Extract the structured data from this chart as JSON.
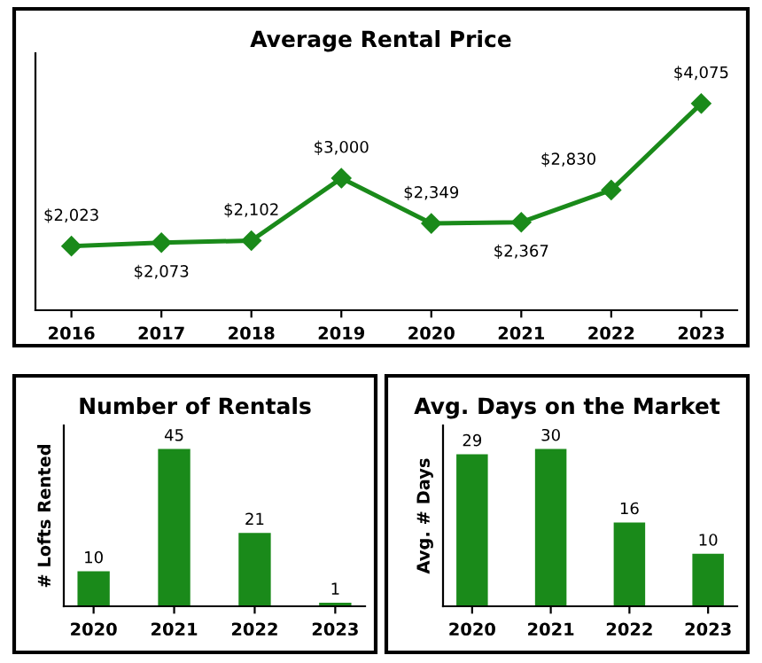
{
  "chart_data": [
    {
      "type": "line",
      "title": "Average Rental Price",
      "categories": [
        "2016",
        "2017",
        "2018",
        "2019",
        "2020",
        "2021",
        "2022",
        "2023"
      ],
      "series": [
        {
          "color": "#1a8a1a",
          "values": [
            2023,
            2073,
            2102,
            3000,
            2349,
            2367,
            2830,
            4075
          ],
          "value_labels": [
            "$2,023",
            "$2,073",
            "$2,102",
            "$3,000",
            "$2,349",
            "$2,367",
            "$2,830",
            "$4,075"
          ]
        }
      ],
      "ylim": [
        1100,
        4800
      ],
      "marker": "diamond",
      "line_style": "solid",
      "grid": false,
      "tick_labels": "x"
    },
    {
      "type": "bar",
      "title": "Number of Rentals",
      "ylabel": "# Lofts Rented",
      "categories": [
        "2020",
        "2021",
        "2022",
        "2023"
      ],
      "series": [
        {
          "color": "#1a8a1a",
          "values": [
            10,
            45,
            21,
            1
          ]
        }
      ],
      "data_labels": true,
      "grid": false,
      "tick_labels": "x"
    },
    {
      "type": "bar",
      "title": "Avg. Days on the Market",
      "ylabel": "Avg. # Days",
      "categories": [
        "2020",
        "2021",
        "2022",
        "2023"
      ],
      "series": [
        {
          "color": "#1a8a1a",
          "values": [
            29,
            30,
            16,
            10
          ]
        }
      ],
      "data_labels": true,
      "grid": false,
      "tick_labels": "x"
    }
  ]
}
